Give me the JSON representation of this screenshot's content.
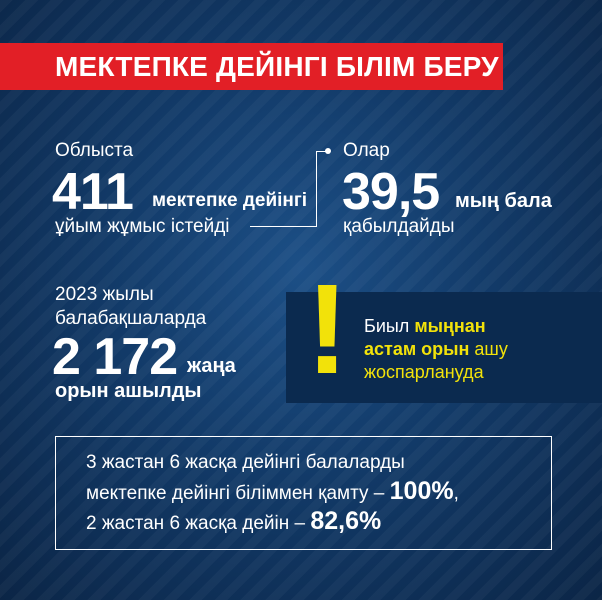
{
  "banner": {
    "title": "МЕКТЕПКЕ ДЕЙІНГІ БІЛІМ БЕРУ"
  },
  "stat1": {
    "prefix": "Облыста",
    "number": "411",
    "unit": "мектепке дейінгі",
    "suffix": "ұйым жұмыс істейді"
  },
  "stat2": {
    "prefix": "Олар",
    "number": "39,5",
    "unit": "мың бала",
    "suffix": "қабылдайды"
  },
  "stat3": {
    "prefix_line1": "2023 жылы",
    "prefix_line2": "балабақшаларда",
    "number": "2 172",
    "unit": "жаңа",
    "suffix": "орын ашылды"
  },
  "callout": {
    "mark": "!",
    "line1_normal": "Биыл ",
    "line1_bold": "мыңнан",
    "line2_bold": "астам орын",
    "line2_normal": " ашу",
    "line3": "жоспарлануда"
  },
  "coverage": {
    "line1": "3 жастан 6 жасқа дейінгі балаларды",
    "line2_text": "мектепке дейінгі біліммен қамту – ",
    "line2_value": "100%",
    "line2_end": ",",
    "line3_text": "2 жастан 6 жасқа дейін – ",
    "line3_value": "82,6%"
  },
  "colors": {
    "banner": "#e21f26",
    "accent": "#f2e20a",
    "background": "#123a68"
  }
}
